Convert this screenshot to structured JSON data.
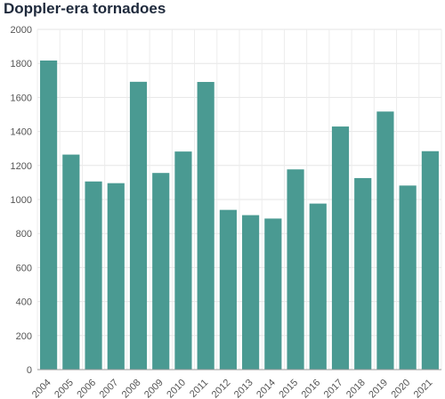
{
  "chart_data": {
    "type": "bar",
    "title": "Doppler-era tornadoes",
    "xlabel": "",
    "ylabel": "",
    "categories": [
      "2004",
      "2005",
      "2006",
      "2007",
      "2008",
      "2009",
      "2010",
      "2011",
      "2012",
      "2013",
      "2014",
      "2015",
      "2016",
      "2017",
      "2018",
      "2019",
      "2020",
      "2021"
    ],
    "values": [
      1817,
      1264,
      1106,
      1096,
      1692,
      1156,
      1282,
      1691,
      939,
      908,
      888,
      1177,
      976,
      1429,
      1126,
      1517,
      1082,
      1284
    ],
    "ylim": [
      0,
      2000
    ],
    "yticks": [
      0,
      200,
      400,
      600,
      800,
      1000,
      1200,
      1400,
      1600,
      1800,
      2000
    ],
    "grid": true,
    "bar_color": "#4a9a92"
  }
}
